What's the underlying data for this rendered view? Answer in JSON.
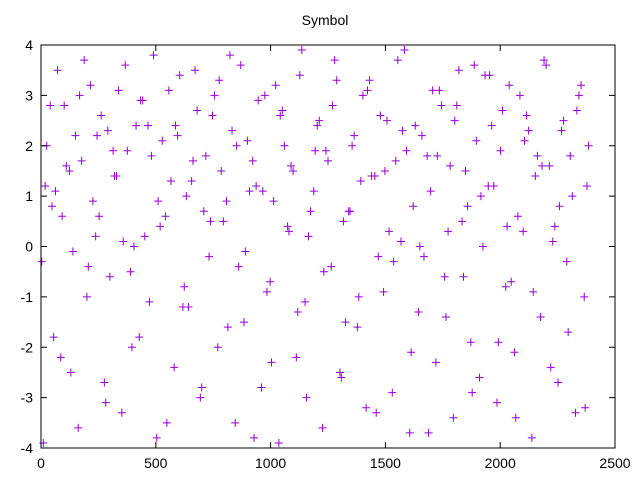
{
  "chart_data": {
    "type": "scatter",
    "title": "Symbol",
    "xlabel": "",
    "ylabel": "",
    "xlim": [
      0,
      2500
    ],
    "ylim": [
      -4,
      4
    ],
    "x_ticks": [
      0,
      500,
      1000,
      1500,
      2000,
      2500
    ],
    "y_ticks": [
      -4,
      -3,
      -2,
      -1,
      0,
      1,
      2,
      3,
      4
    ],
    "x_tick_labels": [
      "0",
      "500",
      "1000",
      "1500",
      "2000",
      "2500"
    ],
    "y_tick_labels": [
      "-4",
      "-3",
      "-2",
      "-1",
      "0",
      "1",
      "2",
      "3",
      "4"
    ],
    "grid": false,
    "legend": "none",
    "marker": "plus",
    "series": [
      {
        "color": "#9400d3",
        "x": [
          3,
          40,
          72,
          110,
          150,
          188,
          226,
          262,
          300,
          338,
          376,
          414,
          452,
          490,
          528,
          566,
          604,
          642,
          680,
          718,
          756,
          794,
          832,
          870,
          908,
          946,
          984,
          1022,
          1060,
          1098,
          1136,
          1174,
          1212,
          1250,
          1288,
          1326,
          1364,
          1402,
          1440,
          1478,
          1516,
          1554,
          1592,
          1630,
          1668,
          1706,
          1744,
          1782,
          1820,
          1858,
          1896,
          1934,
          1972,
          2010,
          2048,
          2086,
          2124,
          2162,
          2200,
          2238,
          2276,
          2314,
          2352,
          2385,
          18,
          55,
          92,
          130,
          168,
          206,
          244,
          282,
          320,
          358,
          396,
          434,
          472,
          510,
          548,
          586,
          624,
          662,
          700,
          738,
          776,
          814,
          852,
          890,
          928,
          966,
          1004,
          1042,
          1080,
          1118,
          1156,
          1194,
          1232,
          1270,
          1308,
          1346,
          1384,
          1422,
          1460,
          1498,
          1536,
          1574,
          1612,
          1650,
          1688,
          1726,
          1764,
          1802,
          1840,
          1878,
          1916,
          1954,
          1992,
          2030,
          2068,
          2106,
          2144,
          2182,
          2220,
          2258,
          2296,
          2334,
          2370,
          10,
          48,
          86,
          124,
          162,
          200,
          238,
          276,
          314,
          352,
          390,
          428,
          466,
          504,
          542,
          580,
          618,
          656,
          694,
          732,
          770,
          808,
          846,
          884,
          922,
          960,
          998,
          1036,
          1074,
          1112,
          1150,
          1188,
          1226,
          1264,
          1302,
          1340,
          1378,
          1416,
          1454,
          1492,
          1530,
          1568,
          1606,
          1644,
          1682,
          1720,
          1758,
          1796,
          1834,
          1872,
          1910,
          1948,
          1986,
          2024,
          2062,
          2100,
          2138,
          2176,
          2214,
          2252,
          2290,
          2328,
          2366,
          25,
          63,
          101,
          139,
          177,
          215,
          253,
          291,
          329,
          367,
          405,
          443,
          481,
          519,
          557,
          595,
          633,
          671,
          709,
          747,
          785,
          823,
          861,
          899,
          937,
          975,
          1013,
          1051,
          1089,
          1127,
          1165,
          1203,
          1241,
          1279,
          1317,
          1355,
          1393,
          1431,
          1469,
          1507,
          1545,
          1583,
          1621,
          1659,
          1697,
          1735,
          1773,
          1811,
          1849,
          1887,
          1925,
          1963,
          2001,
          2039,
          2077,
          2115,
          2153,
          2191,
          2229,
          2267,
          2305,
          2343,
          2378
        ],
        "y": [
          -0.3,
          2.8,
          3.5,
          1.6,
          2.2,
          3.7,
          0.9,
          2.6,
          -0.6,
          3.1,
          1.9,
          2.4,
          0.2,
          3.8,
          2.1,
          1.3,
          3.4,
          -1.2,
          2.7,
          1.8,
          3.0,
          0.5,
          2.3,
          3.6,
          1.1,
          2.9,
          -0.9,
          3.2,
          2.0,
          1.5,
          3.9,
          0.7,
          2.5,
          1.7,
          3.3,
          -1.5,
          2.2,
          3.0,
          1.4,
          2.6,
          0.3,
          3.7,
          1.9,
          2.4,
          -0.2,
          3.1,
          2.8,
          1.6,
          3.5,
          0.8,
          2.1,
          3.4,
          1.2,
          2.7,
          -0.7,
          3.0,
          2.3,
          1.8,
          3.6,
          0.4,
          2.5,
          1.0,
          3.2,
          2.0,
          1.2,
          -1.8,
          0.6,
          -2.5,
          3.0,
          -0.4,
          2.2,
          -3.1,
          1.4,
          0.1,
          -2.0,
          2.9,
          -1.1,
          0.9,
          -3.5,
          2.4,
          -0.8,
          1.7,
          -2.8,
          0.5,
          3.3,
          -1.6,
          2.0,
          -0.1,
          -3.8,
          1.1,
          -2.3,
          2.6,
          0.3,
          -1.3,
          -3.0,
          1.9,
          -0.5,
          2.8,
          -2.6,
          0.7,
          -1.0,
          3.1,
          -3.3,
          1.5,
          -0.3,
          2.3,
          -2.1,
          0.0,
          -3.7,
          1.8,
          -1.4,
          2.5,
          -0.6,
          -2.9,
          1.0,
          3.4,
          -1.9,
          0.4,
          -3.4,
          2.1,
          -0.9,
          1.6,
          -2.4,
          0.8,
          -1.7,
          2.7,
          -3.2,
          -3.9,
          0.8,
          -2.2,
          1.5,
          -3.6,
          -1.0,
          0.2,
          -2.7,
          1.9,
          -3.3,
          -0.5,
          -1.8,
          2.4,
          -3.8,
          0.6,
          -2.4,
          -1.2,
          1.3,
          -3.0,
          -0.2,
          -2.0,
          0.9,
          -3.5,
          -1.5,
          1.7,
          -2.8,
          -0.7,
          -3.9,
          0.4,
          -2.2,
          -1.1,
          1.1,
          -3.6,
          -0.4,
          -2.5,
          0.7,
          -1.6,
          -3.2,
          1.4,
          -0.9,
          -2.9,
          0.1,
          -3.7,
          -1.3,
          1.8,
          -2.3,
          -0.6,
          -3.4,
          0.5,
          -1.9,
          -2.6,
          1.2,
          -3.1,
          -0.8,
          -2.1,
          0.3,
          -3.8,
          -1.4,
          1.6,
          -2.7,
          -0.3,
          -3.3,
          -1.0,
          2.0,
          1.1,
          2.8,
          -0.1,
          1.7,
          3.2,
          0.6,
          2.3,
          1.4,
          3.6,
          0.0,
          2.9,
          1.8,
          0.4,
          3.1,
          2.2,
          1.0,
          3.5,
          0.7,
          2.6,
          1.5,
          3.8,
          -0.4,
          2.1,
          1.2,
          3.0,
          0.9,
          2.7,
          1.6,
          3.4,
          0.2,
          2.4,
          1.9,
          3.7,
          0.5,
          2.0,
          1.3,
          3.3,
          -0.2,
          2.5,
          1.7,
          3.9,
          0.8,
          2.2,
          1.1,
          3.1,
          0.3,
          2.8,
          1.5,
          3.6,
          0.0,
          2.4,
          1.9,
          3.2,
          0.6,
          2.6,
          1.4,
          3.7,
          0.1,
          2.3,
          1.8,
          3.0,
          1.2
        ]
      }
    ]
  }
}
